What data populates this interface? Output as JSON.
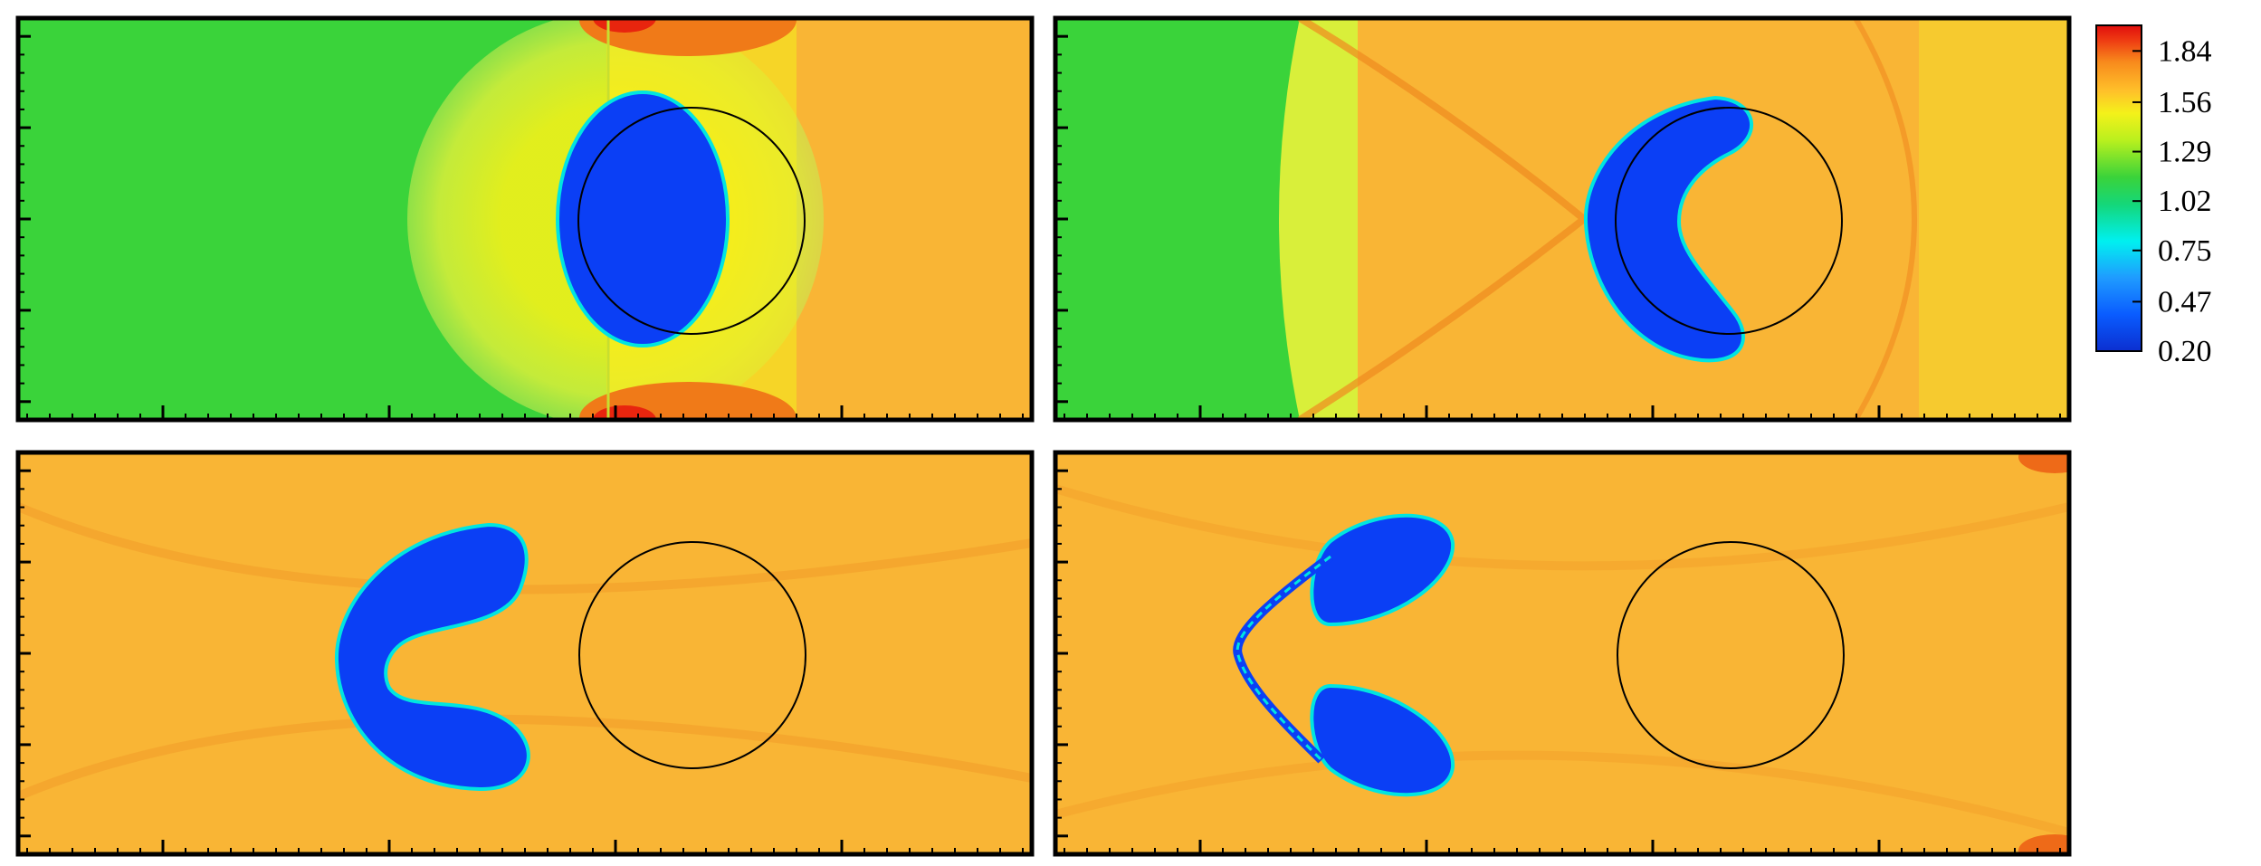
{
  "colorbar": {
    "labels": [
      "1.84",
      "1.56",
      "1.29",
      "1.02",
      "0.75",
      "0.47",
      "0.20"
    ],
    "range": [
      0.2,
      1.98
    ],
    "stops": [
      {
        "value": 0.2,
        "color": "#0b2fd0"
      },
      {
        "value": 0.4,
        "color": "#0a5cff"
      },
      {
        "value": 0.6,
        "color": "#1f9bff"
      },
      {
        "value": 0.8,
        "color": "#00f0f0"
      },
      {
        "value": 1.0,
        "color": "#14d77a"
      },
      {
        "value": 1.15,
        "color": "#3ad33a"
      },
      {
        "value": 1.35,
        "color": "#b8f01e"
      },
      {
        "value": 1.5,
        "color": "#f4f11a"
      },
      {
        "value": 1.62,
        "color": "#ffc12a"
      },
      {
        "value": 1.78,
        "color": "#f88a1c"
      },
      {
        "value": 1.9,
        "color": "#ee3a12"
      },
      {
        "value": 1.98,
        "color": "#e00d0d"
      }
    ]
  },
  "colors": {
    "ambient_gas": "#3ad33a",
    "shocked_gas": "#f9b535",
    "bubble": "#0b3ff5",
    "bubble_edge": "#00e5e0",
    "reference_circle": "#000000",
    "frame": "#000000"
  },
  "panels": [
    {
      "stage": 1,
      "shock_front": "near circle center",
      "bubble_shape": "lens"
    },
    {
      "stage": 2,
      "shock_front": "left of circle",
      "bubble_shape": "kidney"
    },
    {
      "stage": 3,
      "shock_front": "passed",
      "bubble_shape": "horseshoe with roll-up"
    },
    {
      "stage": 4,
      "shock_front": "passed",
      "bubble_shape": "split vortex pair"
    }
  ]
}
